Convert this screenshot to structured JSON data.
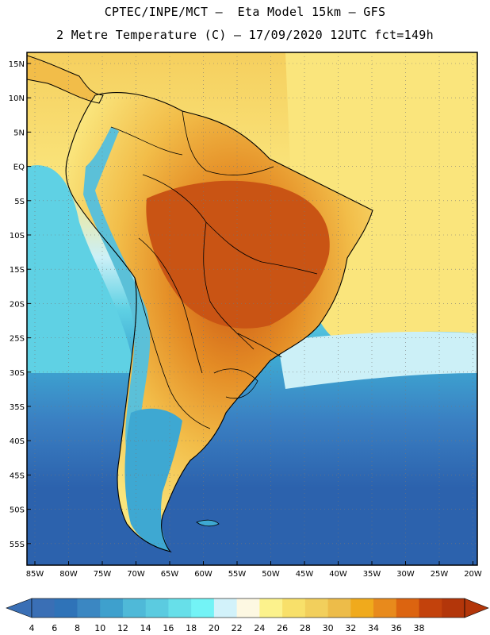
{
  "title_line1": "CPTEC/INPE/MCT –  Eta Model 15km – GFS",
  "title_line2": "2 Metre Temperature (C) – 17/09/2020 12UTC fct=149h",
  "lat_labels": [
    "15N",
    "10N",
    "5N",
    "EQ",
    "5S",
    "10S",
    "15S",
    "20S",
    "25S",
    "30S",
    "35S",
    "40S",
    "45S",
    "50S",
    "55S"
  ],
  "lon_labels": [
    "85W",
    "80W",
    "75W",
    "70W",
    "65W",
    "60W",
    "55W",
    "50W",
    "45W",
    "40W",
    "35W",
    "30W",
    "25W",
    "20W"
  ],
  "colorbar": {
    "labels": [
      "4",
      "6",
      "8",
      "10",
      "12",
      "14",
      "16",
      "18",
      "20",
      "22",
      "24",
      "26",
      "28",
      "30",
      "32",
      "34",
      "36",
      "38"
    ],
    "colors": [
      "#3a6fb5",
      "#2f73b8",
      "#3b87c2",
      "#3ea0cd",
      "#4fb9d8",
      "#5bcbe0",
      "#67dfe9",
      "#73f3f6",
      "#d2f2fa",
      "#fdf8e2",
      "#fcf28c",
      "#f8e06a",
      "#f2cf5c",
      "#edbc49",
      "#f0aa1c",
      "#e88a1c",
      "#dc6410",
      "#c3420c",
      "#b3360a"
    ],
    "under_color": "#3a6fb5",
    "over_color": "#b3360a"
  },
  "palette": {
    "deep_ocean": "#2c62ad",
    "south_ocean": "#3a7fc2",
    "mid_ocean": "#3ea8d2",
    "cyan_ocean": "#5fd1e4",
    "pale_ocean": "#ccf0f7",
    "warm_sea": "#fae57c",
    "north_sea": "#f5cf5e",
    "land_hot": "#c95414",
    "land_warm": "#e48c25",
    "land_mild": "#f2bd49",
    "andes_cold": "#5bc0d8"
  }
}
